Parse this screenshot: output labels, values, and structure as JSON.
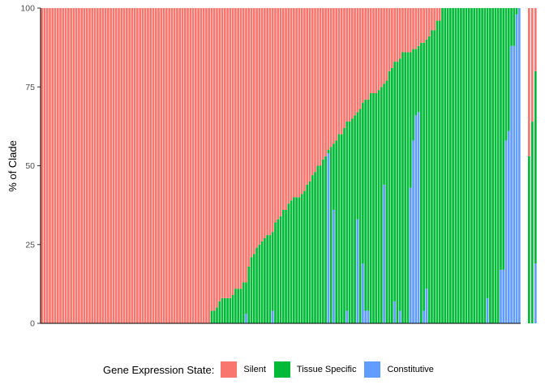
{
  "chart_data": {
    "type": "bar",
    "stacked": true,
    "ylabel": "% of Clade",
    "xlabel": "",
    "ylim": [
      0,
      100
    ],
    "yticks": [
      "0",
      "25",
      "50",
      "75",
      "100"
    ],
    "grid": false,
    "legend": {
      "title": "Gene Expression State:",
      "placement": "bottom",
      "entries": [
        {
          "name": "Silent",
          "color": "#F8766D"
        },
        {
          "name": "Tissue Specific",
          "color": "#00BA38"
        },
        {
          "name": "Constitutive",
          "color": "#619CFF"
        }
      ]
    },
    "series_order": [
      "Constitutive",
      "Tissue Specific",
      "Silent"
    ],
    "colors": {
      "Silent": "#F8766D",
      "Tissue Specific": "#00BA38",
      "Constitutive": "#619CFF"
    },
    "bars": [
      [
        0,
        0
      ],
      [
        0,
        0
      ],
      [
        0,
        0
      ],
      [
        0,
        0
      ],
      [
        0,
        0
      ],
      [
        0,
        0
      ],
      [
        0,
        0
      ],
      [
        0,
        0
      ],
      [
        0,
        0
      ],
      [
        0,
        0
      ],
      [
        0,
        0
      ],
      [
        0,
        0
      ],
      [
        0,
        0
      ],
      [
        0,
        0
      ],
      [
        0,
        0
      ],
      [
        0,
        0
      ],
      [
        0,
        0
      ],
      [
        0,
        0
      ],
      [
        0,
        0
      ],
      [
        0,
        0
      ],
      [
        0,
        0
      ],
      [
        0,
        0
      ],
      [
        0,
        0
      ],
      [
        0,
        0
      ],
      [
        0,
        0
      ],
      [
        0,
        0
      ],
      [
        0,
        0
      ],
      [
        0,
        0
      ],
      [
        0,
        0
      ],
      [
        0,
        0
      ],
      [
        0,
        0
      ],
      [
        0,
        0
      ],
      [
        0,
        0
      ],
      [
        0,
        0
      ],
      [
        0,
        0
      ],
      [
        0,
        0
      ],
      [
        0,
        0
      ],
      [
        0,
        0
      ],
      [
        0,
        0
      ],
      [
        0,
        0
      ],
      [
        0,
        0
      ],
      [
        0,
        0
      ],
      [
        0,
        0
      ],
      [
        0,
        0
      ],
      [
        0,
        0
      ],
      [
        0,
        0
      ],
      [
        0,
        0
      ],
      [
        0,
        0
      ],
      [
        0,
        0
      ],
      [
        0,
        0
      ],
      [
        0,
        0
      ],
      [
        0,
        0
      ],
      [
        0,
        0
      ],
      [
        0,
        0
      ],
      [
        0,
        0
      ],
      [
        0,
        0
      ],
      [
        0,
        0
      ],
      [
        0,
        0
      ],
      [
        0,
        0
      ],
      [
        0,
        0
      ],
      [
        0,
        0
      ],
      [
        0,
        0
      ],
      [
        0,
        0
      ],
      [
        0,
        0
      ],
      [
        0,
        4
      ],
      [
        0,
        4
      ],
      [
        0,
        5
      ],
      [
        0,
        7
      ],
      [
        0,
        8
      ],
      [
        0,
        8
      ],
      [
        0,
        8
      ],
      [
        0,
        8
      ],
      [
        0,
        9
      ],
      [
        0,
        11
      ],
      [
        0,
        11
      ],
      [
        0,
        11
      ],
      [
        0,
        13
      ],
      [
        3,
        13
      ],
      [
        0,
        18
      ],
      [
        0,
        21
      ],
      [
        0,
        22
      ],
      [
        0,
        24
      ],
      [
        0,
        25
      ],
      [
        0,
        26
      ],
      [
        0,
        27
      ],
      [
        0,
        28
      ],
      [
        0,
        28
      ],
      [
        4,
        29
      ],
      [
        0,
        32
      ],
      [
        0,
        33
      ],
      [
        0,
        34
      ],
      [
        0,
        36
      ],
      [
        0,
        36
      ],
      [
        0,
        38
      ],
      [
        0,
        39
      ],
      [
        0,
        40
      ],
      [
        0,
        40
      ],
      [
        0,
        40
      ],
      [
        0,
        41
      ],
      [
        0,
        42
      ],
      [
        0,
        44
      ],
      [
        0,
        45
      ],
      [
        0,
        47
      ],
      [
        0,
        48
      ],
      [
        0,
        50
      ],
      [
        0,
        50
      ],
      [
        0,
        52
      ],
      [
        0,
        53
      ],
      [
        54,
        55
      ],
      [
        0,
        56
      ],
      [
        36,
        57
      ],
      [
        0,
        58
      ],
      [
        0,
        60
      ],
      [
        0,
        60
      ],
      [
        0,
        62
      ],
      [
        4,
        64
      ],
      [
        0,
        64
      ],
      [
        0,
        65
      ],
      [
        0,
        66
      ],
      [
        33,
        67
      ],
      [
        0,
        68
      ],
      [
        19,
        70
      ],
      [
        4,
        71
      ],
      [
        4,
        71
      ],
      [
        0,
        73
      ],
      [
        0,
        73
      ],
      [
        0,
        73
      ],
      [
        0,
        74
      ],
      [
        0,
        75
      ],
      [
        44,
        76
      ],
      [
        0,
        77
      ],
      [
        0,
        80
      ],
      [
        0,
        81
      ],
      [
        7,
        83
      ],
      [
        0,
        83
      ],
      [
        4,
        84
      ],
      [
        0,
        86
      ],
      [
        0,
        86
      ],
      [
        0,
        86
      ],
      [
        43,
        86
      ],
      [
        58,
        87
      ],
      [
        66,
        87
      ],
      [
        67,
        88
      ],
      [
        0,
        89
      ],
      [
        4,
        89
      ],
      [
        11,
        90
      ],
      [
        0,
        91
      ],
      [
        0,
        93
      ],
      [
        0,
        93
      ],
      [
        0,
        96
      ],
      [
        0,
        96
      ],
      [
        0,
        100
      ],
      [
        0,
        100
      ],
      [
        0,
        100
      ],
      [
        0,
        100
      ],
      [
        0,
        100
      ],
      [
        0,
        100
      ],
      [
        0,
        100
      ],
      [
        0,
        100
      ],
      [
        0,
        100
      ],
      [
        0,
        100
      ],
      [
        0,
        100
      ],
      [
        0,
        100
      ],
      [
        0,
        100
      ],
      [
        0,
        100
      ],
      [
        0,
        100
      ],
      [
        0,
        100
      ],
      [
        0,
        100
      ],
      [
        8,
        100
      ],
      [
        0,
        100
      ],
      [
        0,
        100
      ],
      [
        0,
        100
      ],
      [
        0,
        100
      ],
      [
        17,
        100
      ],
      [
        17,
        100
      ],
      [
        58,
        100
      ],
      [
        61,
        100
      ],
      [
        88,
        100
      ],
      [
        88,
        100
      ],
      [
        98,
        100
      ],
      [
        100,
        100
      ]
    ],
    "clipped_bars": [
      [
        0,
        53
      ],
      [
        0,
        64
      ],
      [
        19,
        80
      ]
    ]
  }
}
